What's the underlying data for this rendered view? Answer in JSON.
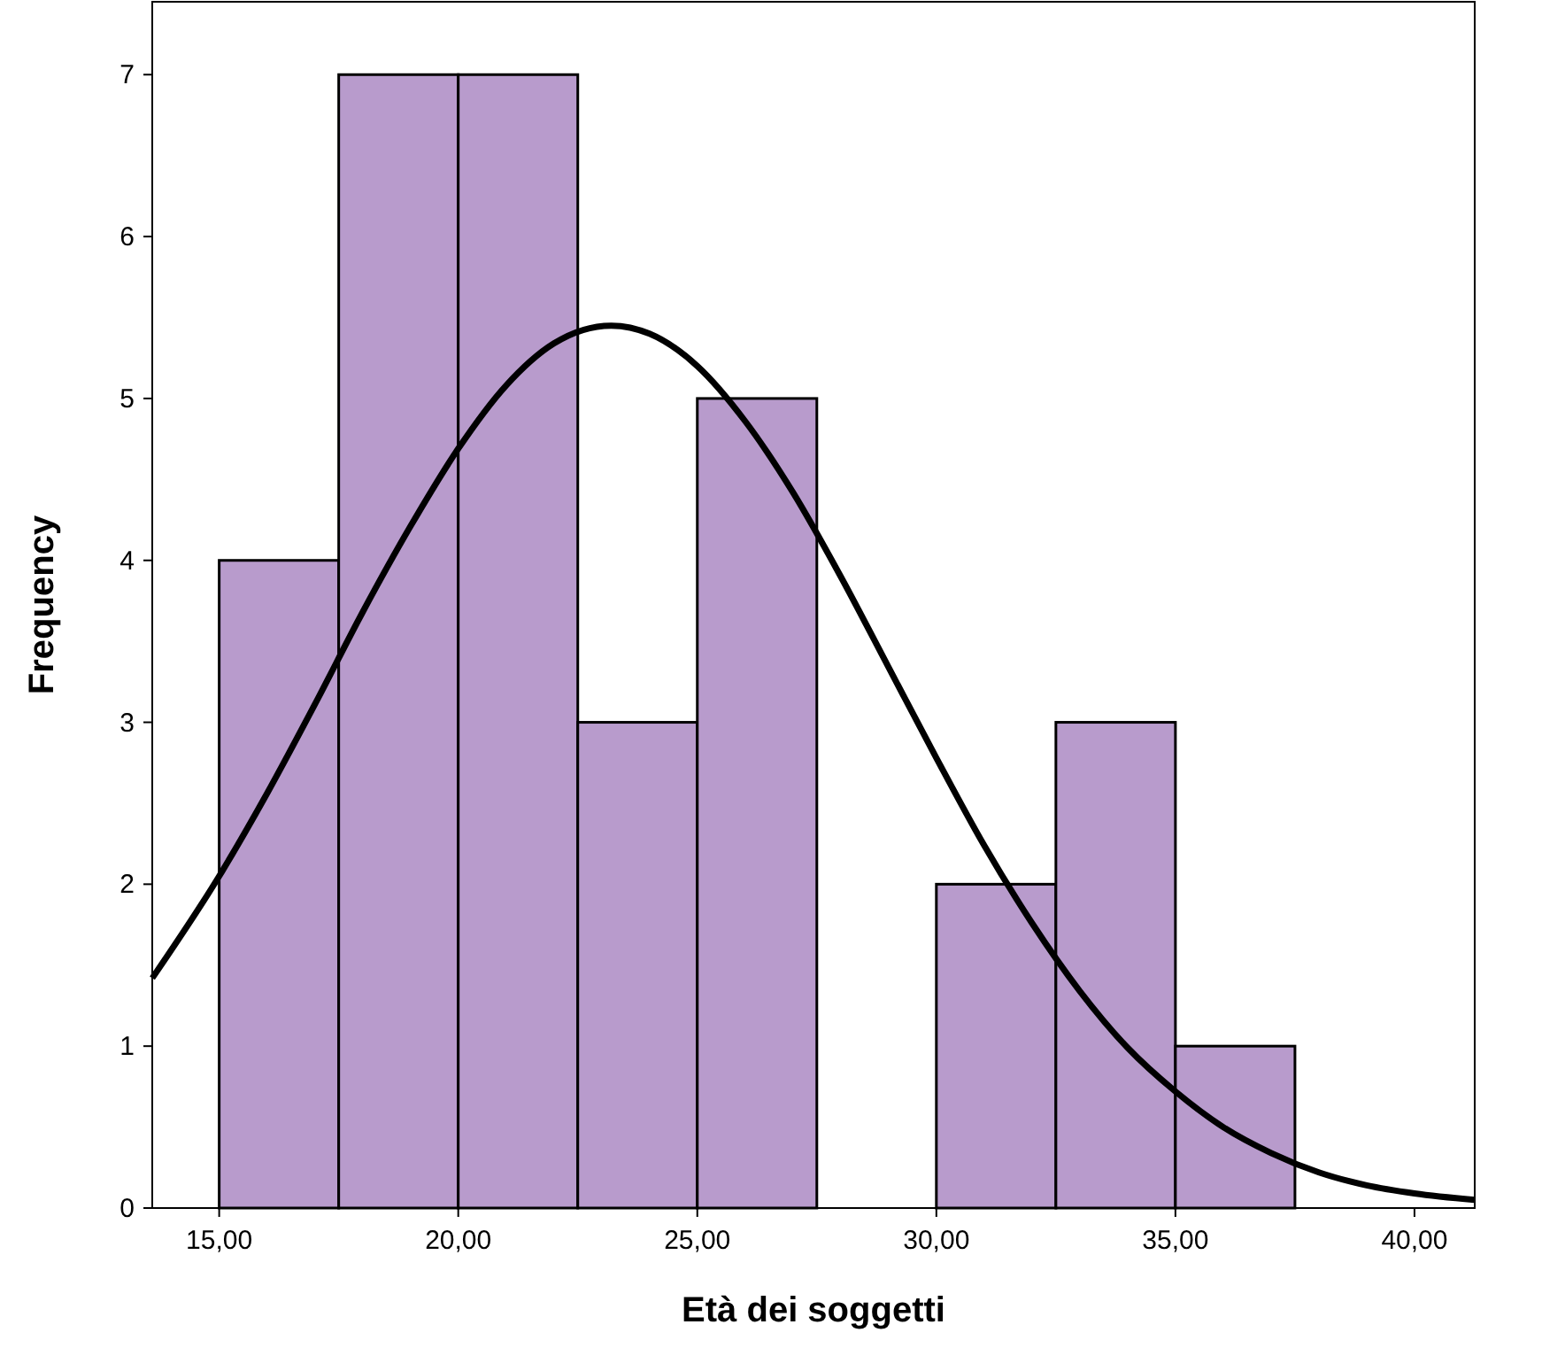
{
  "chart_data": {
    "type": "histogram",
    "xlabel": "Età dei soggetti",
    "ylabel": "Frequency",
    "bins": [
      15,
      17.5,
      20,
      22.5,
      25,
      27.5,
      30,
      32.5,
      35,
      37.5
    ],
    "values": [
      4,
      7,
      7,
      3,
      5,
      0,
      2,
      3,
      1
    ],
    "color": "#b89bcc",
    "xlim": [
      13.6,
      41.26
    ],
    "xticks": [
      {
        "value": 15,
        "label": "15,00"
      },
      {
        "value": 20,
        "label": "20,00"
      },
      {
        "value": 25,
        "label": "25,00"
      },
      {
        "value": 30,
        "label": "30,00"
      },
      {
        "value": 35,
        "label": "35,00"
      },
      {
        "value": 40,
        "label": "40,00"
      }
    ],
    "ylim": [
      0,
      7.45
    ],
    "yticks": [
      0,
      1,
      2,
      3,
      4,
      5,
      6,
      7
    ],
    "grid": false,
    "series": [
      {
        "type": "line",
        "color": "#000000",
        "x": [
          13.6,
          15,
          16,
          17,
          18,
          19,
          20,
          21,
          22,
          23.2,
          24,
          25,
          26,
          27,
          28,
          29,
          30,
          31,
          32,
          33,
          34,
          35,
          36,
          37,
          38,
          39,
          40,
          41.26
        ],
        "values": [
          1.42,
          2.05,
          2.56,
          3.11,
          3.68,
          4.21,
          4.69,
          5.08,
          5.34,
          5.45,
          5.4,
          5.2,
          4.86,
          4.42,
          3.9,
          3.34,
          2.78,
          2.24,
          1.76,
          1.34,
          0.99,
          0.72,
          0.5,
          0.34,
          0.22,
          0.14,
          0.09,
          0.05
        ]
      }
    ]
  }
}
